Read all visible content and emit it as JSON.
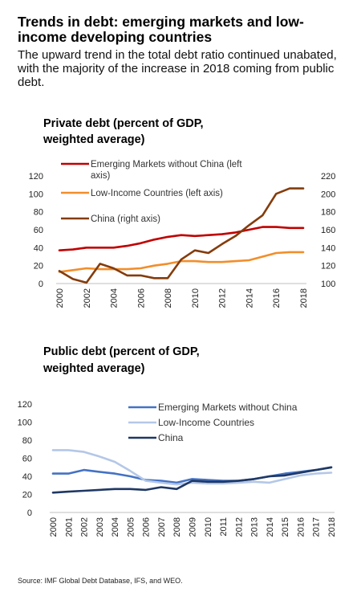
{
  "title": "Trends in debt: emerging markets and low-income developing countries",
  "subtitle": "The upward trend in the total debt ratio continued unabated, with the majority of the increase in 2018 coming from public debt.",
  "source": "Source: IMF Global Debt Database, IFS, and WEO.",
  "chart_data": [
    {
      "type": "line",
      "title": "Private debt (percent of GDP, weighted average)",
      "x": [
        2000,
        2001,
        2002,
        2003,
        2004,
        2005,
        2006,
        2007,
        2008,
        2009,
        2010,
        2011,
        2012,
        2013,
        2014,
        2015,
        2016,
        2017,
        2018
      ],
      "xticks": [
        "2000",
        "2002",
        "2004",
        "2006",
        "2008",
        "2010",
        "2012",
        "2014",
        "2016",
        "2018"
      ],
      "yleft": {
        "ylim": [
          0,
          120
        ],
        "ticks": [
          "0",
          "20",
          "40",
          "60",
          "80",
          "100",
          "120"
        ]
      },
      "yright": {
        "ylim": [
          100,
          220
        ],
        "ticks": [
          "100",
          "120",
          "140",
          "160",
          "180",
          "200",
          "220"
        ]
      },
      "series": [
        {
          "name": "Emerging Markets without China (left axis)",
          "axis": "left",
          "color": "#c00000",
          "values": [
            37,
            38,
            40,
            40,
            40,
            42,
            45,
            49,
            52,
            54,
            53,
            54,
            55,
            57,
            60,
            63,
            63,
            62,
            62
          ]
        },
        {
          "name": "Low-Income Countries (left axis)",
          "axis": "left",
          "color": "#f28e2b",
          "values": [
            13,
            15,
            17,
            16,
            16,
            16,
            17,
            20,
            22,
            25,
            25,
            24,
            24,
            25,
            26,
            30,
            34,
            35,
            35
          ]
        },
        {
          "name": "China (right axis)",
          "axis": "right",
          "color": "#843c0c",
          "values": [
            114,
            105,
            101,
            122,
            117,
            109,
            109,
            106,
            106,
            127,
            137,
            134,
            144,
            153,
            165,
            176,
            200,
            206,
            206
          ]
        }
      ]
    },
    {
      "type": "line",
      "title": "Public debt (percent of GDP, weighted average)",
      "x": [
        2000,
        2001,
        2002,
        2003,
        2004,
        2005,
        2006,
        2007,
        2008,
        2009,
        2010,
        2011,
        2012,
        2013,
        2014,
        2015,
        2016,
        2017,
        2018
      ],
      "xticks": [
        "2000",
        "2001",
        "2002",
        "2003",
        "2004",
        "2005",
        "2006",
        "2007",
        "2008",
        "2009",
        "2010",
        "2011",
        "2012",
        "2013",
        "2014",
        "2015",
        "2016",
        "2017",
        "2018"
      ],
      "yleft": {
        "ylim": [
          0,
          120
        ],
        "ticks": [
          "0",
          "20",
          "40",
          "60",
          "80",
          "100",
          "120"
        ]
      },
      "series": [
        {
          "name": "Emerging Markets without China",
          "axis": "left",
          "color": "#4472c4",
          "values": [
            43,
            43,
            47,
            45,
            43,
            40,
            36,
            35,
            33,
            37,
            36,
            35,
            35,
            37,
            40,
            43,
            45,
            47,
            50
          ]
        },
        {
          "name": "Low-Income Countries",
          "axis": "left",
          "color": "#b4c7e7",
          "values": [
            69,
            69,
            67,
            62,
            56,
            46,
            35,
            33,
            31,
            33,
            32,
            32,
            33,
            34,
            33,
            37,
            41,
            43,
            44
          ]
        },
        {
          "name": "China",
          "axis": "left",
          "color": "#1f3864",
          "values": [
            22,
            23,
            24,
            25,
            26,
            26,
            25,
            28,
            26,
            35,
            34,
            34,
            35,
            37,
            40,
            41,
            44,
            47,
            50
          ]
        }
      ]
    }
  ]
}
